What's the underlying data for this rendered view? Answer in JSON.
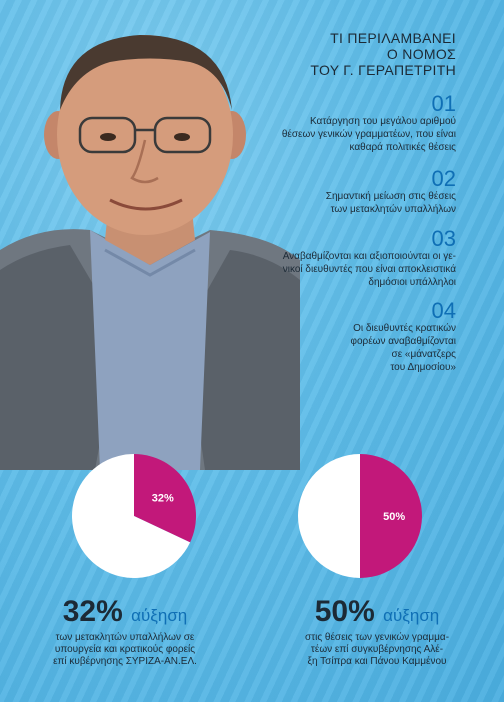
{
  "header": {
    "lines": [
      "ΤΙ ΠΕΡΙΛΑΜΒΑΝΕΙ",
      "Ο ΝΟΜΟΣ",
      "ΤΟΥ Γ. ΓΕΡΑΠΕΤΡΙΤΗ"
    ]
  },
  "items": [
    {
      "number": "01",
      "lines": [
        "Κατάργηση του μεγάλου αριθμού",
        "θέσεων γενικών γραμματέων, που είναι",
        "καθαρά πολιτικές θέσεις"
      ]
    },
    {
      "number": "02",
      "lines": [
        "Σημαντική μείωση στις θέσεις",
        "των μετακλητών υπαλλήλων"
      ]
    },
    {
      "number": "03",
      "lines": [
        "Αναβαθμίζονται και αξιοποιούνται οι γε-",
        "νικοί διευθυντές που είναι αποκλειστικά",
        "δημόσιοι υπάλληλοι"
      ]
    },
    {
      "number": "04",
      "lines": [
        "Οι διευθυντές κρατικών",
        "φορέων αναβαθμίζονται",
        "σε «μάνατζερς",
        "του Δημοσίου»"
      ]
    }
  ],
  "chart_data": [
    {
      "type": "pie",
      "values": [
        32,
        68
      ],
      "label": "32%",
      "colors": [
        "#c2187a",
        "#ffffff"
      ]
    },
    {
      "type": "pie",
      "values": [
        50,
        50
      ],
      "label": "50%",
      "colors": [
        "#c2187a",
        "#ffffff"
      ]
    }
  ],
  "stats": [
    {
      "value": "32%",
      "word": "αύξηση",
      "lines": [
        "των μετακλητών υπαλλήλων σε",
        "υπουργεία και κρατικούς φορείς",
        "επί κυβέρνησης ΣΥΡΙΖΑ-ΑΝ.ΕΛ."
      ]
    },
    {
      "value": "50%",
      "word": "αύξηση",
      "lines": [
        "στις θέσεις των γενικών γραμμα-",
        "τέων επί συγκυβέρνησης Αλέ-",
        "ξη Τσίπρα και Πάνου Καμμένου"
      ]
    }
  ]
}
